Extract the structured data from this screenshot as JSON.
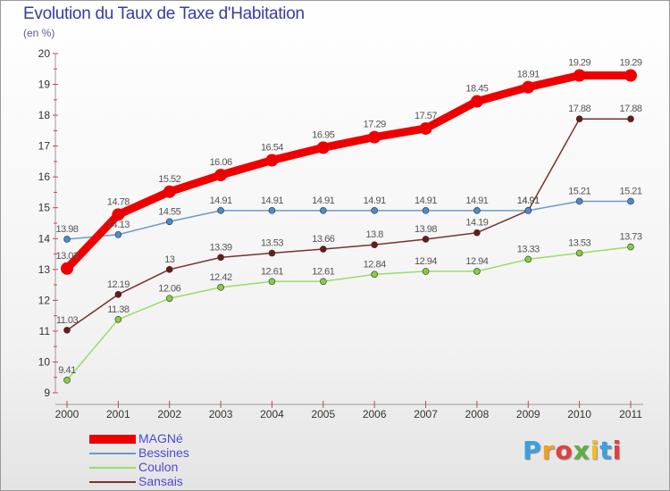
{
  "title": "Evolution du Taux de Taxe d'Habitation",
  "subtitle": "(en %)",
  "logo": "Proxiti",
  "colors": {
    "axis": "#999999",
    "grid": "#dddddd",
    "tick_mark": "#cc4444"
  },
  "chart_data": {
    "type": "line",
    "title": "Evolution du Taux de Taxe d'Habitation",
    "subtitle": "(en %)",
    "xlabel": "",
    "ylabel": "",
    "x": [
      "2000",
      "2001",
      "2002",
      "2003",
      "2004",
      "2005",
      "2006",
      "2007",
      "2008",
      "2009",
      "2010",
      "2011"
    ],
    "ylim": [
      9,
      20
    ],
    "yticks": [
      "9",
      "10",
      "11",
      "12",
      "13",
      "14",
      "15",
      "16",
      "17",
      "18",
      "19",
      "20"
    ],
    "grid": false,
    "legend_position": "bottom-left",
    "series": [
      {
        "name": "MAGNé",
        "color": "#ee0000",
        "values": [
          13.03,
          14.78,
          15.52,
          16.06,
          16.54,
          16.95,
          17.29,
          17.57,
          18.45,
          18.91,
          19.29,
          19.29
        ],
        "labels": [
          "13.03",
          "14.78",
          "15.52",
          "16.06",
          "16.54",
          "16.95",
          "17.29",
          "17.57",
          "18.45",
          "18.91",
          "19.29",
          "19.29"
        ]
      },
      {
        "name": "Bessines",
        "color": "#6a9cc8",
        "values": [
          13.98,
          14.13,
          14.55,
          14.91,
          14.91,
          14.91,
          14.91,
          14.91,
          14.91,
          14.91,
          15.21,
          15.21
        ],
        "labels": [
          "13.98",
          "14.13",
          "14.55",
          "14.91",
          "14.91",
          "14.91",
          "14.91",
          "14.91",
          "14.91",
          "14.91",
          "15.21",
          "15.21"
        ]
      },
      {
        "name": "Coulon",
        "color": "#99dd66",
        "values": [
          9.41,
          11.38,
          12.06,
          12.42,
          12.61,
          12.61,
          12.84,
          12.94,
          12.94,
          13.33,
          13.53,
          13.73
        ],
        "labels": [
          "9.41",
          "11.38",
          "12.06",
          "12.42",
          "12.61",
          "12.61",
          "12.84",
          "12.94",
          "12.94",
          "13.33",
          "13.53",
          "13.73"
        ]
      },
      {
        "name": "Sansais",
        "color": "#7a3030",
        "values": [
          11.03,
          12.19,
          13,
          13.39,
          13.53,
          13.66,
          13.8,
          13.98,
          14.19,
          14.91,
          17.88,
          17.88
        ],
        "labels": [
          "11.03",
          "12.19",
          "13",
          "13.39",
          "13.53",
          "13.66",
          "13.8",
          "13.98",
          "14.19",
          "14.91",
          "17.88",
          "17.88"
        ]
      }
    ]
  }
}
